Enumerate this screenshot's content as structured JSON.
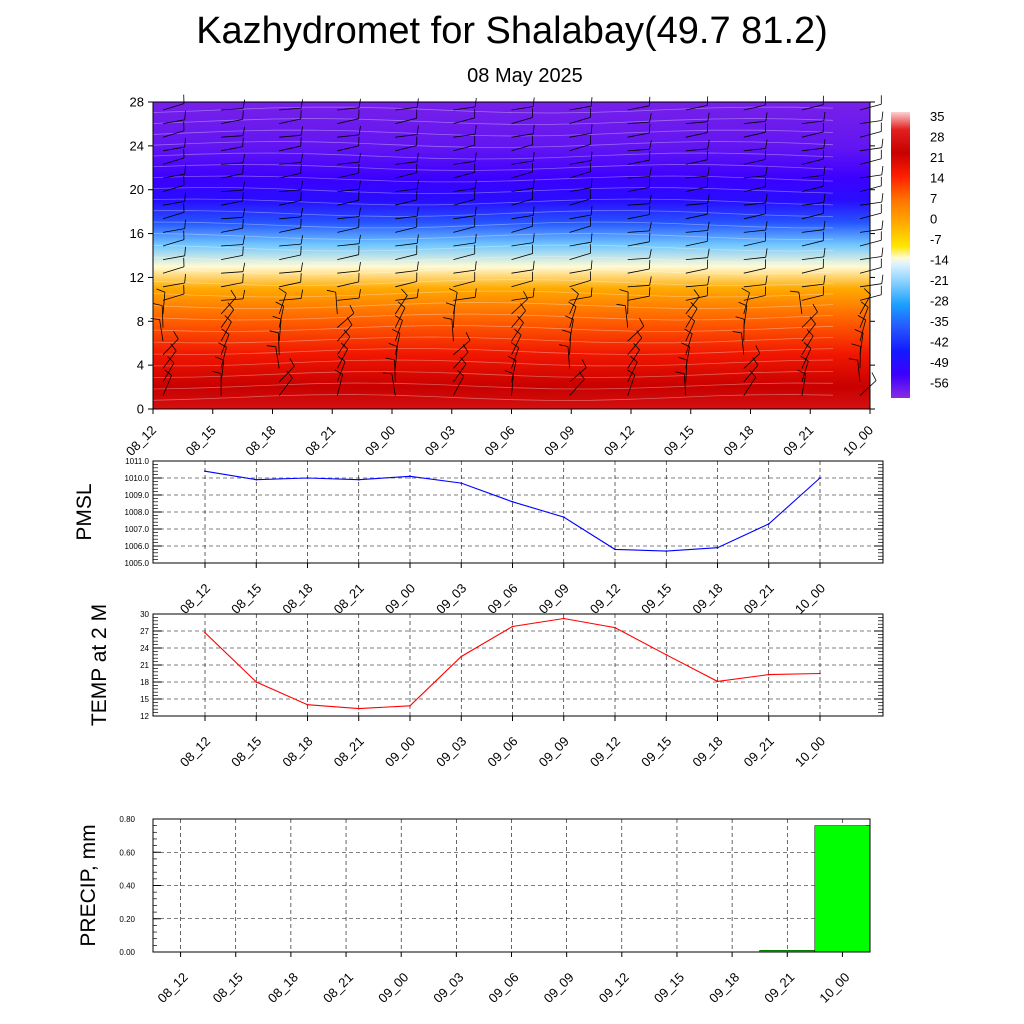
{
  "header": {
    "title": "Kazhydromet for Shalabay(49.7 81.2)",
    "subtitle": "08 May 2025"
  },
  "colors": {
    "pmsl_line": "#0000ff",
    "temp_line": "#ff0000",
    "precip_bar": "#00ff00",
    "grid": "#000000"
  },
  "chart_data": [
    {
      "type": "heatmap",
      "x_ticks": [
        "08_12",
        "08_15",
        "08_18",
        "08_21",
        "09_00",
        "09_03",
        "09_06",
        "09_09",
        "09_12",
        "09_15",
        "09_18",
        "09_21",
        "10_00"
      ],
      "y_ticks": [
        0,
        4,
        8,
        12,
        16,
        20,
        24,
        28
      ],
      "ylim": [
        0,
        28
      ],
      "colorbar_labels": [
        "35",
        "28",
        "21",
        "14",
        "7",
        "0",
        "-7",
        "-14",
        "-21",
        "-28",
        "-35",
        "-42",
        "-49",
        "-56"
      ],
      "color_stops": [
        {
          "value": 38,
          "color": "#fdd0d0"
        },
        {
          "value": 32,
          "color": "#e2201f"
        },
        {
          "value": 24,
          "color": "#c80000"
        },
        {
          "value": 16,
          "color": "#ff1e00"
        },
        {
          "value": 8,
          "color": "#ff7300"
        },
        {
          "value": 0,
          "color": "#ffaa00"
        },
        {
          "value": -8,
          "color": "#ffe600"
        },
        {
          "value": -12,
          "color": "#fffbd5"
        },
        {
          "value": -14,
          "color": "#dff3ff"
        },
        {
          "value": -20,
          "color": "#8cd2ff"
        },
        {
          "value": -28,
          "color": "#19a0ff"
        },
        {
          "value": -36,
          "color": "#2655ff"
        },
        {
          "value": -44,
          "color": "#1419ff"
        },
        {
          "value": -52,
          "color": "#3c00ff"
        },
        {
          "value": -60,
          "color": "#8a2be2"
        }
      ],
      "temperature_profile": [
        {
          "level": 0,
          "value": 28
        },
        {
          "level": 2,
          "value": 24
        },
        {
          "level": 5,
          "value": 18
        },
        {
          "level": 8,
          "value": 10
        },
        {
          "level": 11,
          "value": 0
        },
        {
          "level": 13,
          "value": -12
        },
        {
          "level": 15,
          "value": -22
        },
        {
          "level": 17,
          "value": -36
        },
        {
          "level": 19,
          "value": -48
        },
        {
          "level": 21,
          "value": -52
        },
        {
          "level": 24,
          "value": -56
        },
        {
          "level": 28,
          "value": -58
        }
      ]
    },
    {
      "type": "line",
      "x": [
        "08_12",
        "08_15",
        "08_18",
        "08_21",
        "09_00",
        "09_03",
        "09_06",
        "09_09",
        "09_12",
        "09_15",
        "09_18",
        "09_21",
        "10_00"
      ],
      "series": [
        {
          "values": [
            1010.4,
            1009.9,
            1010.0,
            1009.9,
            1010.1,
            1009.7,
            1008.6,
            1007.7,
            1005.8,
            1005.7,
            1005.9,
            1007.3,
            1010.0
          ]
        }
      ],
      "ylabel": "PMSL",
      "ylim": [
        1005.0,
        1011.0
      ],
      "y_ticks": [
        "1011.0",
        "1010.0",
        "1009.0",
        "1008.0",
        "1007.0",
        "1006.0",
        "1005.0"
      ]
    },
    {
      "type": "line",
      "x": [
        "08_12",
        "08_15",
        "08_18",
        "08_21",
        "09_00",
        "09_03",
        "09_06",
        "09_09",
        "09_12",
        "09_15",
        "09_18",
        "09_21",
        "10_00"
      ],
      "series": [
        {
          "values": [
            26.7,
            18.0,
            14.0,
            13.3,
            13.8,
            22.5,
            27.8,
            29.2,
            27.6,
            22.8,
            18.1,
            19.3,
            19.5
          ]
        }
      ],
      "ylabel": "TEMP at 2 M",
      "ylim": [
        12,
        30
      ],
      "y_ticks": [
        "30",
        "27",
        "24",
        "21",
        "18",
        "15",
        "12"
      ]
    },
    {
      "type": "bar",
      "categories": [
        "08_12",
        "08_15",
        "08_18",
        "08_21",
        "09_00",
        "09_03",
        "09_06",
        "09_09",
        "09_12",
        "09_15",
        "09_18",
        "09_21",
        "10_00"
      ],
      "values": [
        0,
        0,
        0,
        0,
        0,
        0,
        0,
        0,
        0,
        0,
        0,
        0.01,
        0.76
      ],
      "ylabel": "PRECIP, mm",
      "ylim": [
        0,
        0.8
      ],
      "y_ticks": [
        "0.80",
        "0.60",
        "0.40",
        "0.20",
        "0.00"
      ]
    }
  ]
}
